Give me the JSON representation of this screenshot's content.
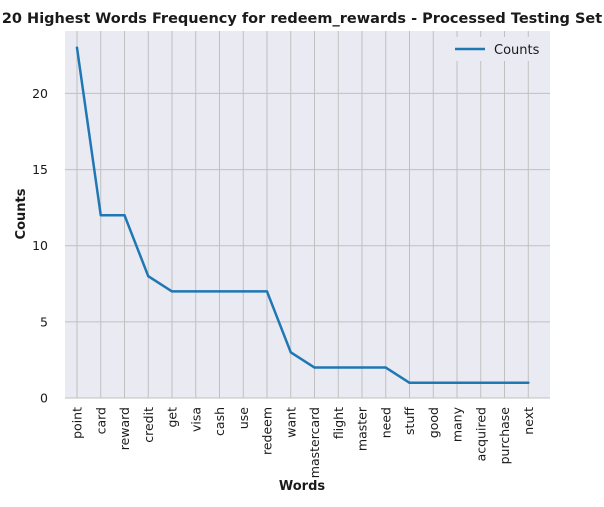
{
  "chart_data": {
    "type": "line",
    "title": "20 Highest Words Frequency for redeem_rewards - Processed Testing Set",
    "xlabel": "Words",
    "ylabel": "Counts",
    "categories": [
      "point",
      "card",
      "reward",
      "credit",
      "get",
      "visa",
      "cash",
      "use",
      "redeem",
      "want",
      "mastercard",
      "flight",
      "master",
      "need",
      "stuff",
      "good",
      "many",
      "acquired",
      "purchase",
      "next"
    ],
    "series": [
      {
        "name": "Counts",
        "values": [
          23,
          12,
          12,
          8,
          7,
          7,
          7,
          7,
          7,
          3,
          2,
          2,
          2,
          2,
          1,
          1,
          1,
          1,
          1,
          1
        ]
      }
    ],
    "ylim": [
      0,
      24.1
    ],
    "yticks": [
      0,
      5,
      10,
      15,
      20
    ],
    "grid": true,
    "legend_position": "top-right",
    "colors": {
      "line": "#1f77b4",
      "background": "#eaeaf2",
      "grid": "#c0c0c0"
    }
  }
}
